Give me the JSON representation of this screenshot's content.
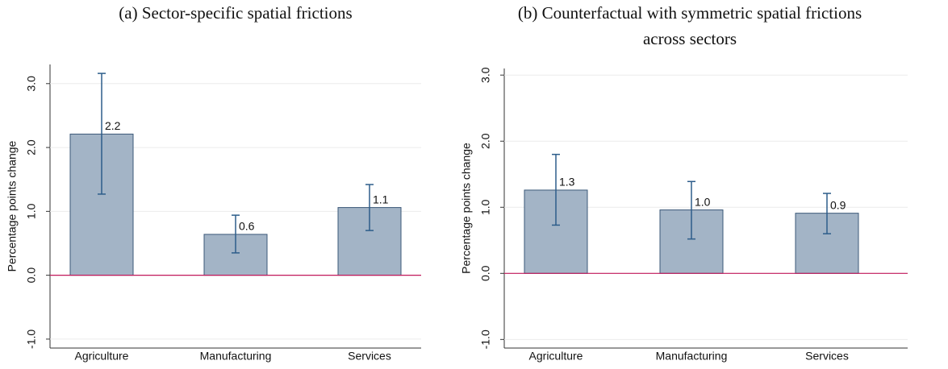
{
  "chart_data": [
    {
      "type": "bar",
      "title": [
        "(a) Sector-specific spatial frictions"
      ],
      "ylabel": "Percentage points change",
      "categories": [
        "Agriculture",
        "Manufacturing",
        "Services"
      ],
      "values": [
        2.21,
        0.64,
        1.06
      ],
      "value_labels": [
        "2.2",
        "0.6",
        "1.1"
      ],
      "ci_low": [
        1.27,
        0.35,
        0.7
      ],
      "ci_high": [
        3.16,
        0.94,
        1.42
      ],
      "color": "#a3b4c6",
      "ylim": [
        -1.14,
        3.3
      ],
      "yticks": [
        {
          "value": -1,
          "label": "-1.0"
        },
        {
          "value": 0,
          "label": "0.0"
        },
        {
          "value": 1,
          "label": "1.0"
        },
        {
          "value": 2,
          "label": "2.0"
        },
        {
          "value": 3,
          "label": "3.0"
        }
      ],
      "grid": true
    },
    {
      "type": "bar",
      "title": [
        "(b) Counterfactual with symmetric spatial frictions",
        "across sectors"
      ],
      "ylabel": "Percentage points change",
      "categories": [
        "Agriculture",
        "Manufacturing",
        "Services"
      ],
      "values": [
        1.26,
        0.96,
        0.91
      ],
      "value_labels": [
        "1.3",
        "1.0",
        "0.9"
      ],
      "ci_low": [
        0.73,
        0.52,
        0.6
      ],
      "ci_high": [
        1.8,
        1.39,
        1.21
      ],
      "color": "#a3b4c6",
      "ylim": [
        -1.13,
        3.1
      ],
      "yticks": [
        {
          "value": -1,
          "label": "-1.0"
        },
        {
          "value": 0,
          "label": "0.0"
        },
        {
          "value": 1,
          "label": "1.0"
        },
        {
          "value": 2,
          "label": "2.0"
        },
        {
          "value": 3,
          "label": "3.0"
        }
      ],
      "grid": true
    }
  ]
}
